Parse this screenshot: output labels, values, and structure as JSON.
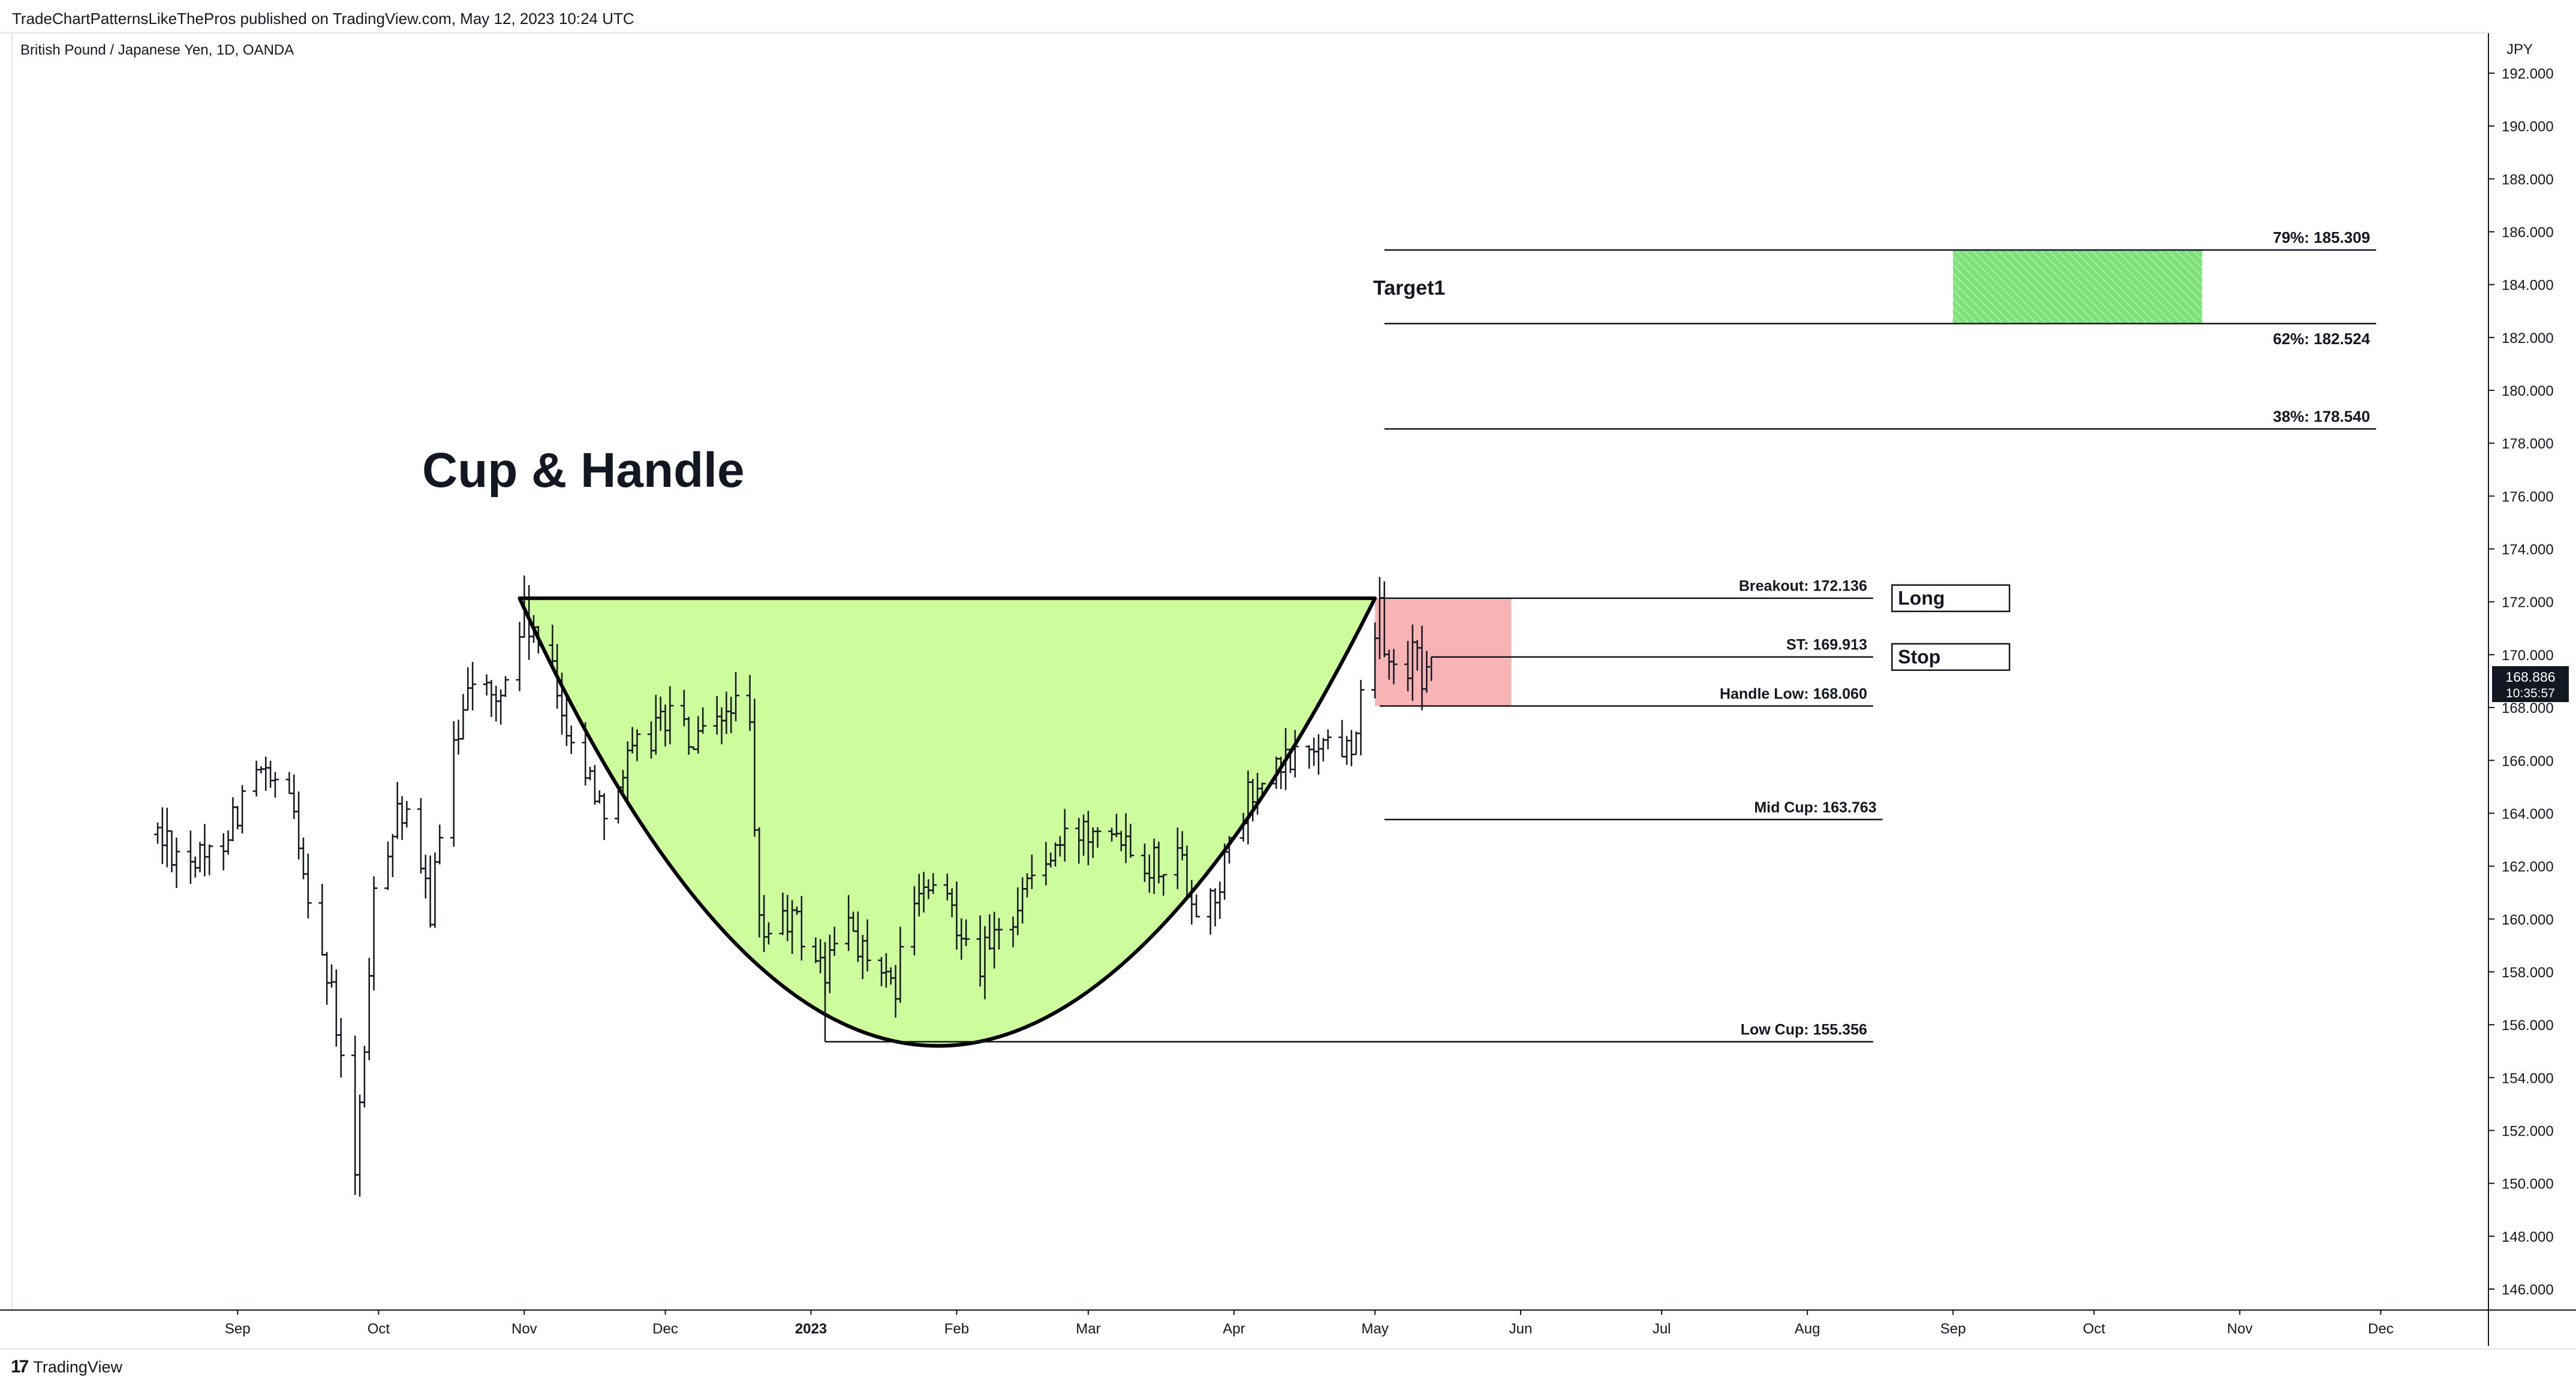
{
  "header": {
    "published": "TradeChartPatternsLikeThePros published on TradingView.com, May 12, 2023 10:24 UTC",
    "symbol": "British Pound / Japanese Yen, 1D, OANDA"
  },
  "footer": {
    "logo_mark": "17",
    "logo_text": "TradingView"
  },
  "colors": {
    "cup_fill": "#ccfc9c",
    "stop_zone": "#f8b4b4",
    "target_zone": "#7ee27a",
    "candle": "#131722",
    "price_badge": "#131722"
  },
  "chart_data": {
    "type": "ohlc",
    "title": "Cup & Handle",
    "currency_label": "JPY",
    "ylim": [
      144,
      193.5
    ],
    "x_labels": [
      "Sep",
      "Oct",
      "Nov",
      "Dec",
      "2023",
      "Feb",
      "Mar",
      "Apr",
      "May",
      "Jun",
      "Jul",
      "Aug",
      "Sep",
      "Oct",
      "Nov",
      "Dec"
    ],
    "y_ticks": [
      "146.000",
      "148.000",
      "150.000",
      "152.000",
      "154.000",
      "156.000",
      "158.000",
      "160.000",
      "162.000",
      "164.000",
      "166.000",
      "168.000",
      "170.000",
      "172.000",
      "174.000",
      "176.000",
      "178.000",
      "180.000",
      "182.000",
      "184.000",
      "186.000",
      "188.000",
      "190.000",
      "192.000"
    ],
    "last_price": "168.886",
    "countdown": "10:35:57",
    "anchors": [
      [
        "2022-08-15",
        163.2
      ],
      [
        "2022-08-25",
        162.0
      ],
      [
        "2022-09-05",
        165.5
      ],
      [
        "2022-09-13",
        164.0
      ],
      [
        "2022-09-22",
        156.0
      ],
      [
        "2022-09-26",
        150.0
      ],
      [
        "2022-09-30",
        160.5
      ],
      [
        "2022-10-05",
        164.5
      ],
      [
        "2022-10-12",
        160.5
      ],
      [
        "2022-10-20",
        169.5
      ],
      [
        "2022-10-26",
        168.0
      ],
      [
        "2022-11-01",
        171.5
      ],
      [
        "2022-11-07",
        169.0
      ],
      [
        "2022-11-14",
        165.5
      ],
      [
        "2022-11-18",
        164.5
      ],
      [
        "2022-11-24",
        166.0
      ],
      [
        "2022-12-01",
        167.8
      ],
      [
        "2022-12-07",
        166.5
      ],
      [
        "2022-12-12",
        167.0
      ],
      [
        "2022-12-15",
        168.3
      ],
      [
        "2022-12-19",
        166.8
      ],
      [
        "2022-12-21",
        159.5
      ],
      [
        "2022-12-28",
        160.0
      ],
      [
        "2023-01-04",
        158.0
      ],
      [
        "2023-01-09",
        160.0
      ],
      [
        "2023-01-13",
        158.5
      ],
      [
        "2023-01-18",
        157.0
      ],
      [
        "2023-01-24",
        161.0
      ],
      [
        "2023-01-31",
        160.5
      ],
      [
        "2023-02-06",
        158.5
      ],
      [
        "2023-02-10",
        159.2
      ],
      [
        "2023-02-16",
        161.5
      ],
      [
        "2023-02-24",
        162.8
      ],
      [
        "2023-03-03",
        164.0
      ],
      [
        "2023-03-08",
        163.5
      ],
      [
        "2023-03-14",
        162.2
      ],
      [
        "2023-03-20",
        162.5
      ],
      [
        "2023-03-24",
        160.5
      ],
      [
        "2023-03-28",
        161.0
      ],
      [
        "2023-04-04",
        164.5
      ],
      [
        "2023-04-12",
        165.8
      ],
      [
        "2023-04-19",
        166.8
      ],
      [
        "2023-04-25",
        166.5
      ],
      [
        "2023-04-28",
        168.0
      ],
      [
        "2023-05-02",
        171.5
      ],
      [
        "2023-05-05",
        169.0
      ],
      [
        "2023-05-09",
        170.0
      ],
      [
        "2023-05-12",
        168.9
      ]
    ],
    "cup": {
      "left": [
        "2022-10-31",
        172.136
      ],
      "right": [
        "2023-05-01",
        172.136
      ],
      "bottom": [
        "2023-01-28",
        155.2
      ]
    },
    "levels": [
      {
        "label": "Breakout: 172.136",
        "value": 172.136,
        "from": "2023-05-02",
        "to": "2023-08-15"
      },
      {
        "label": "ST: 169.913",
        "value": 169.913,
        "from": "2023-05-13",
        "to": "2023-08-15"
      },
      {
        "label": "Handle Low: 168.060",
        "value": 168.06,
        "from": "2023-05-02",
        "to": "2023-08-15"
      },
      {
        "label": "Mid Cup: 163.763",
        "value": 163.763,
        "from": "2023-05-03",
        "to": "2023-08-17"
      },
      {
        "label": "Low Cup: 155.356",
        "value": 155.356,
        "from": "2023-01-04",
        "to": "2023-08-15"
      },
      {
        "label": "38%: 178.540",
        "value": 178.54,
        "from": "2023-05-03",
        "to": "2023-11-30"
      },
      {
        "label": "62%: 182.524",
        "value": 182.524,
        "from": "2023-05-03",
        "to": "2023-11-30"
      },
      {
        "label": "79%: 185.309",
        "value": 185.309,
        "from": "2023-05-03",
        "to": "2023-11-30"
      }
    ],
    "target_label": "Target1",
    "target_zone": {
      "from": "2023-09-01",
      "to": "2023-10-24",
      "low": 182.524,
      "high": 185.309
    },
    "stop_zone": {
      "from": "2023-05-01",
      "to": "2023-05-30",
      "low": 168.06,
      "high": 172.136
    },
    "tags": [
      {
        "label": "Long",
        "value": 172.136,
        "from": "2023-08-19",
        "to": "2023-09-13"
      },
      {
        "label": "Stop",
        "value": 169.913,
        "from": "2023-08-19",
        "to": "2023-09-13"
      }
    ]
  }
}
